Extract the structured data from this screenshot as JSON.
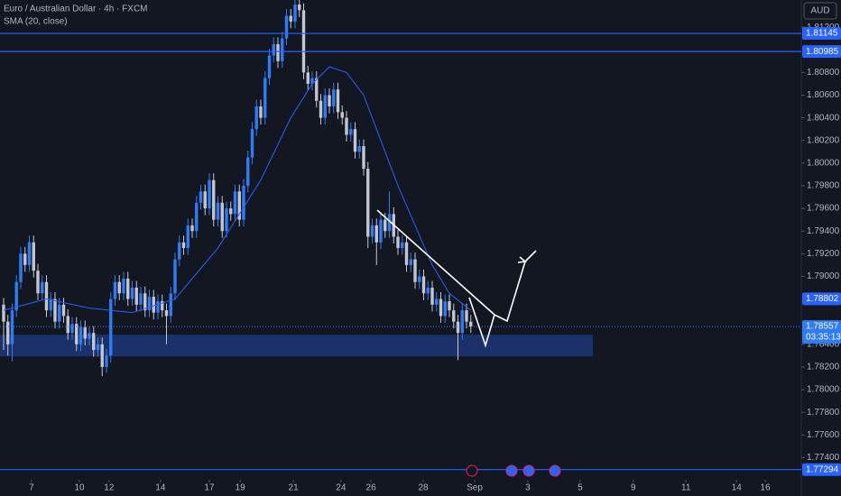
{
  "chart_data": {
    "type": "candlestick",
    "title": "Euro / Australian Dollar · 4h · FXCM",
    "indicator": "SMA (20, close)",
    "currency": "AUD",
    "up_color": "#2f7cf6",
    "down_color": "#c3c6ce",
    "x": [
      0,
      1,
      2,
      3,
      4,
      5,
      6,
      7,
      8,
      9,
      10,
      11,
      12,
      13,
      14,
      15,
      16,
      17,
      18,
      19,
      20,
      21,
      22,
      23,
      24,
      25,
      26,
      27,
      28,
      29,
      30,
      31,
      32,
      33,
      34,
      35,
      36,
      37,
      38,
      39,
      40,
      41,
      42,
      43,
      44,
      45,
      46,
      47,
      48,
      49,
      50,
      51,
      52,
      53,
      54,
      55,
      56,
      57,
      58,
      59,
      60,
      61,
      62,
      63,
      64,
      65,
      66,
      67,
      68,
      69,
      70,
      71,
      72,
      73,
      74,
      75,
      76,
      77,
      78,
      79,
      80,
      81,
      82,
      83,
      84,
      85,
      86,
      87,
      88,
      89,
      90,
      91,
      92,
      93,
      94,
      95,
      96,
      97,
      98,
      99,
      100,
      101,
      102,
      103,
      104,
      105,
      106,
      107,
      108,
      109
    ],
    "open": [
      1.7875,
      1.786,
      1.784,
      1.787,
      1.7895,
      1.792,
      1.791,
      1.793,
      1.7905,
      1.7885,
      1.7895,
      1.787,
      1.788,
      1.786,
      1.7875,
      1.7865,
      1.785,
      1.7858,
      1.784,
      1.7855,
      1.7845,
      1.785,
      1.7835,
      1.784,
      1.782,
      1.783,
      1.788,
      1.7895,
      1.7885,
      1.7898,
      1.788,
      1.789,
      1.7875,
      1.7885,
      1.787,
      1.7882,
      1.7868,
      1.7878,
      1.787,
      1.7865,
      1.7885,
      1.7915,
      1.793,
      1.7925,
      1.7945,
      1.794,
      1.7965,
      1.7975,
      1.796,
      1.7985,
      1.795,
      1.7965,
      1.794,
      1.796,
      1.7955,
      1.7975,
      1.795,
      1.798,
      1.8005,
      1.803,
      1.805,
      1.804,
      1.8075,
      1.8095,
      1.8105,
      1.809,
      1.811,
      1.813,
      1.8125,
      1.814,
      1.8135,
      1.808,
      1.807,
      1.8075,
      1.8055,
      1.804,
      1.806,
      1.805,
      1.8065,
      1.8045,
      1.804,
      1.8025,
      1.803,
      1.801,
      1.8015,
      1.7995,
      1.7935,
      1.7945,
      1.793,
      1.795,
      1.794,
      1.7955,
      1.7935,
      1.7925,
      1.793,
      1.791,
      1.7915,
      1.7895,
      1.79,
      1.7885,
      1.789,
      1.7875,
      1.788,
      1.7865,
      1.7878,
      1.787,
      1.786,
      1.785,
      1.787,
      1.786
    ],
    "high": [
      1.7881,
      1.7866,
      1.7876,
      1.7901,
      1.7926,
      1.7926,
      1.7936,
      1.7936,
      1.7911,
      1.7901,
      1.7901,
      1.7886,
      1.7886,
      1.7881,
      1.7881,
      1.7871,
      1.7864,
      1.7864,
      1.7861,
      1.7861,
      1.7856,
      1.7856,
      1.7846,
      1.7846,
      1.7836,
      1.7886,
      1.7901,
      1.7901,
      1.7904,
      1.7904,
      1.7896,
      1.7896,
      1.7891,
      1.7891,
      1.7888,
      1.7888,
      1.7884,
      1.7884,
      1.7876,
      1.7891,
      1.7921,
      1.7936,
      1.7936,
      1.7951,
      1.7951,
      1.7971,
      1.7981,
      1.7981,
      1.7991,
      1.7991,
      1.7971,
      1.7971,
      1.7966,
      1.7966,
      1.7981,
      1.7981,
      1.7986,
      1.8011,
      1.8036,
      1.8056,
      1.8056,
      1.8081,
      1.8101,
      1.8111,
      1.8111,
      1.8116,
      1.8136,
      1.8136,
      1.8146,
      1.8146,
      1.8141,
      1.8086,
      1.8081,
      1.8081,
      1.8061,
      1.8066,
      1.8066,
      1.8071,
      1.8071,
      1.8051,
      1.8046,
      1.8036,
      1.8036,
      1.8021,
      1.8021,
      1.8001,
      1.7951,
      1.7951,
      1.7956,
      1.7956,
      1.7975,
      1.7961,
      1.7941,
      1.7936,
      1.7936,
      1.7921,
      1.7921,
      1.7906,
      1.7906,
      1.7896,
      1.7896,
      1.7886,
      1.7886,
      1.7884,
      1.7884,
      1.7876,
      1.7866,
      1.7876,
      1.7876,
      1.7866
    ],
    "low": [
      1.7835,
      1.783,
      1.7825,
      1.7864,
      1.7889,
      1.7904,
      1.7904,
      1.7899,
      1.7879,
      1.7879,
      1.7864,
      1.7864,
      1.7854,
      1.7854,
      1.7859,
      1.7844,
      1.7844,
      1.7834,
      1.7834,
      1.7839,
      1.7839,
      1.7829,
      1.7829,
      1.7812,
      1.7815,
      1.7824,
      1.7874,
      1.7879,
      1.7879,
      1.7874,
      1.7874,
      1.7869,
      1.7869,
      1.7864,
      1.7864,
      1.7862,
      1.7862,
      1.7864,
      1.784,
      1.7859,
      1.7879,
      1.7909,
      1.7919,
      1.7919,
      1.7934,
      1.7934,
      1.7959,
      1.7954,
      1.7954,
      1.7944,
      1.7944,
      1.7934,
      1.7934,
      1.7949,
      1.7949,
      1.7944,
      1.7944,
      1.7974,
      1.7999,
      1.8024,
      1.8034,
      1.8034,
      1.8069,
      1.8089,
      1.8084,
      1.8084,
      1.8104,
      1.8119,
      1.8119,
      1.8129,
      1.8074,
      1.8064,
      1.8064,
      1.8049,
      1.8034,
      1.8034,
      1.8044,
      1.8044,
      1.8039,
      1.8034,
      1.8019,
      1.8019,
      1.8004,
      1.8004,
      1.7989,
      1.7925,
      1.7929,
      1.791,
      1.7924,
      1.7934,
      1.7934,
      1.7929,
      1.7919,
      1.7919,
      1.7904,
      1.7904,
      1.7889,
      1.7889,
      1.7879,
      1.7879,
      1.7869,
      1.7869,
      1.7859,
      1.7859,
      1.7864,
      1.7854,
      1.7826,
      1.7844,
      1.7854,
      1.785
    ],
    "close": [
      1.786,
      1.784,
      1.787,
      1.7895,
      1.792,
      1.791,
      1.793,
      1.7905,
      1.7885,
      1.7895,
      1.787,
      1.788,
      1.786,
      1.7875,
      1.7865,
      1.785,
      1.7858,
      1.784,
      1.7855,
      1.7845,
      1.785,
      1.7835,
      1.784,
      1.782,
      1.783,
      1.788,
      1.7895,
      1.7885,
      1.7898,
      1.788,
      1.789,
      1.7875,
      1.7885,
      1.787,
      1.7882,
      1.7868,
      1.7878,
      1.787,
      1.7865,
      1.7885,
      1.7915,
      1.793,
      1.7925,
      1.7945,
      1.794,
      1.7965,
      1.7975,
      1.796,
      1.7985,
      1.795,
      1.7965,
      1.794,
      1.796,
      1.7955,
      1.7975,
      1.795,
      1.798,
      1.8005,
      1.803,
      1.805,
      1.804,
      1.8075,
      1.8095,
      1.8105,
      1.809,
      1.811,
      1.813,
      1.8125,
      1.814,
      1.8135,
      1.808,
      1.807,
      1.8075,
      1.8055,
      1.804,
      1.806,
      1.805,
      1.8065,
      1.8045,
      1.804,
      1.8025,
      1.803,
      1.801,
      1.8015,
      1.7995,
      1.7935,
      1.7945,
      1.793,
      1.795,
      1.794,
      1.7955,
      1.7935,
      1.7925,
      1.793,
      1.791,
      1.7915,
      1.7895,
      1.79,
      1.7885,
      1.789,
      1.7875,
      1.788,
      1.7865,
      1.7878,
      1.787,
      1.786,
      1.785,
      1.787,
      1.786,
      1.78557
    ],
    "sma": {
      "color": "#2962ff",
      "x": [
        0,
        10,
        20,
        30,
        40,
        50,
        60,
        67,
        72,
        76,
        80,
        84,
        88,
        92,
        96,
        100,
        104,
        109
      ],
      "values": [
        1.787,
        1.788,
        1.7872,
        1.7868,
        1.788,
        1.7925,
        1.7985,
        1.804,
        1.807,
        1.8085,
        1.808,
        1.806,
        1.802,
        1.798,
        1.7945,
        1.791,
        1.7885,
        1.787
      ]
    },
    "hlines": [
      1.81145,
      1.80985,
      1.77294
    ],
    "hline_color": "#2962ff",
    "marker_price": 1.78802,
    "countdown": "03:35:13",
    "zone": [
      1.78293,
      1.78485
    ],
    "zone_color": "#1d3677",
    "xlim": [
      -0.84,
      186.1
    ],
    "xticks": [
      {
        "value": 6.5,
        "label": "7"
      },
      {
        "value": 17.7,
        "label": "10"
      },
      {
        "value": 24.6,
        "label": "12"
      },
      {
        "value": 36.6,
        "label": "14"
      },
      {
        "value": 48,
        "label": "17"
      },
      {
        "value": 55.2,
        "label": "19"
      },
      {
        "value": 67.6,
        "label": "21"
      },
      {
        "value": 78.7,
        "label": "24"
      },
      {
        "value": 85.7,
        "label": "26"
      },
      {
        "value": 97.9,
        "label": "28"
      },
      {
        "value": 109.9,
        "label": "Sep"
      },
      {
        "value": 122.3,
        "label": "3"
      },
      {
        "value": 134.5,
        "label": "5"
      },
      {
        "value": 146.9,
        "label": "9"
      },
      {
        "value": 159.2,
        "label": "11"
      },
      {
        "value": 171,
        "label": "14"
      },
      {
        "value": 177.7,
        "label": "16"
      }
    ],
    "ylim": [
      1.7722,
      1.8144
    ],
    "yticks": [
      {
        "value": 1.812,
        "label": "1.81200"
      },
      {
        "value": 1.808,
        "label": "1.80800"
      },
      {
        "value": 1.806,
        "label": "1.80600"
      },
      {
        "value": 1.804,
        "label": "1.80400"
      },
      {
        "value": 1.802,
        "label": "1.80200"
      },
      {
        "value": 1.8,
        "label": "1.80000"
      },
      {
        "value": 1.798,
        "label": "1.79800"
      },
      {
        "value": 1.796,
        "label": "1.79600"
      },
      {
        "value": 1.794,
        "label": "1.79400"
      },
      {
        "value": 1.792,
        "label": "1.79200"
      },
      {
        "value": 1.79,
        "label": "1.79000"
      },
      {
        "value": 1.784,
        "label": "1.78400"
      },
      {
        "value": 1.782,
        "label": "1.78200"
      },
      {
        "value": 1.78,
        "label": "1.78000"
      },
      {
        "value": 1.778,
        "label": "1.77800"
      },
      {
        "value": 1.776,
        "label": "1.77600"
      },
      {
        "value": 1.774,
        "label": "1.77400"
      }
    ]
  }
}
